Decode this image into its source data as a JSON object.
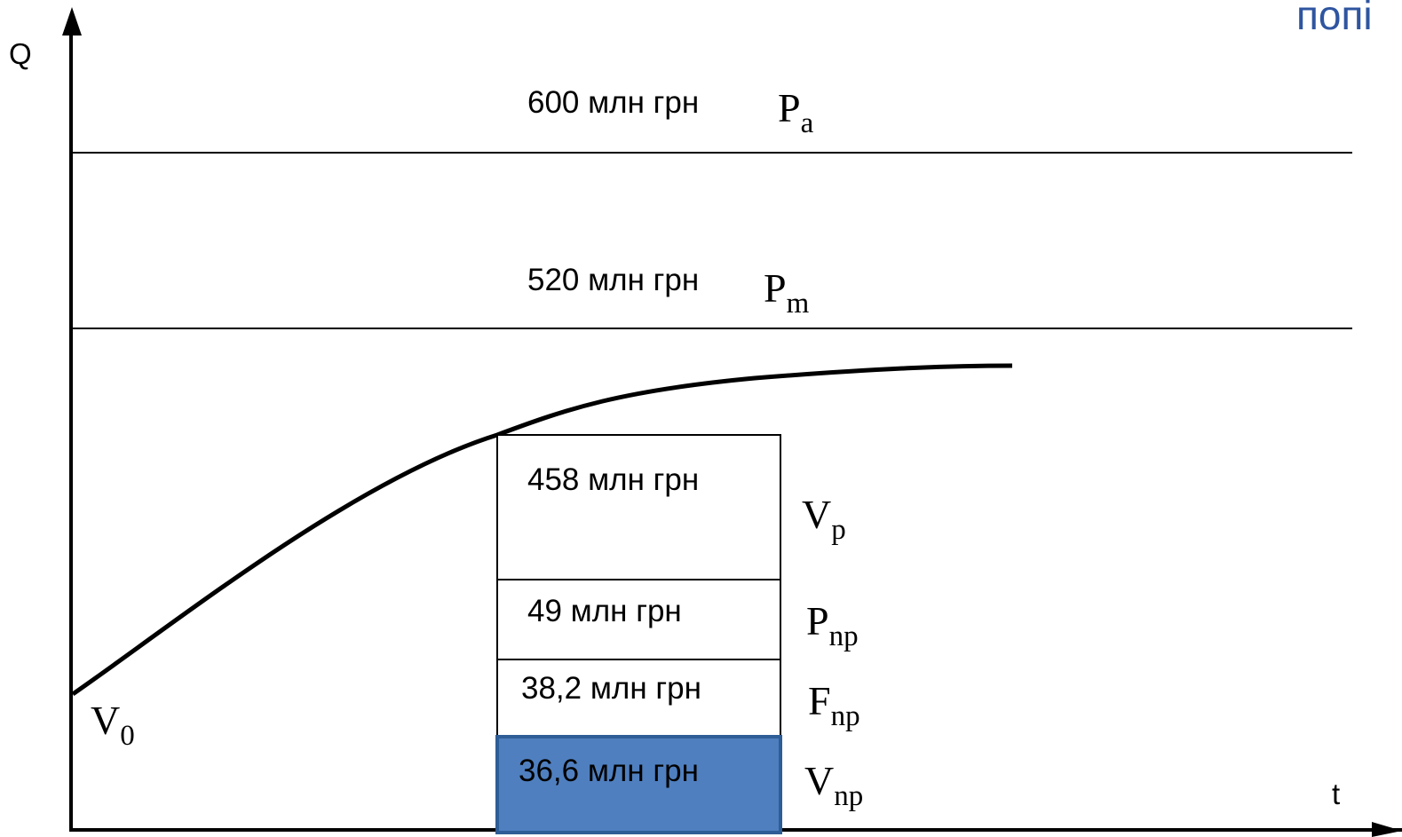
{
  "corner_text": "попі",
  "axes": {
    "y_label": "Q",
    "x_label": "t"
  },
  "colors": {
    "line": "#000000",
    "highlight_fill": "#4f7fbf",
    "highlight_stroke": "#2f5d96",
    "corner_text": "#2f55a0"
  },
  "levels": [
    {
      "value": "600 млн грн",
      "symbol": "P",
      "sub": "a"
    },
    {
      "value": "520 млн грн",
      "symbol": "P",
      "sub": "m"
    }
  ],
  "blocks": [
    {
      "value": "458 млн грн",
      "symbol": "V",
      "sub": "p"
    },
    {
      "value": "49 млн грн",
      "symbol": "P",
      "sub": "np"
    },
    {
      "value": "38,2 млн грн",
      "symbol": "F",
      "sub": "np"
    },
    {
      "value": "36,6 млн грн",
      "symbol": "V",
      "sub": "np"
    }
  ],
  "origin_label": {
    "symbol": "V",
    "sub": "0"
  }
}
